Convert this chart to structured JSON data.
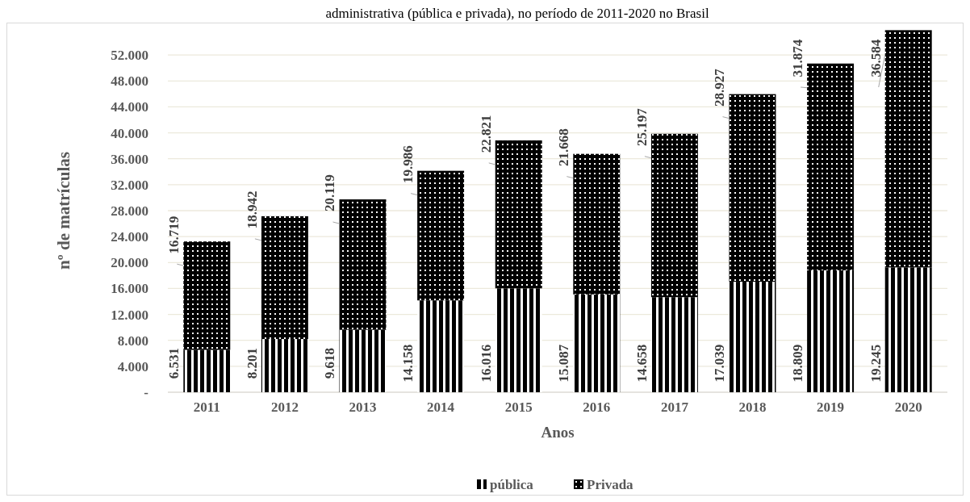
{
  "chart_data": {
    "type": "bar",
    "stacked": true,
    "title": "administrativa (pública e privada), no período de 2011-2020 no Brasil",
    "xlabel": "Anos",
    "ylabel": "nº de matrículas",
    "categories": [
      "2011",
      "2012",
      "2013",
      "2014",
      "2015",
      "2016",
      "2017",
      "2018",
      "2019",
      "2020"
    ],
    "series": [
      {
        "name": "pública",
        "color": "#000000",
        "values": [
          6531,
          8201,
          9618,
          14158,
          16016,
          15087,
          14658,
          17039,
          18809,
          19245
        ],
        "value_labels": [
          "6.531",
          "8.201",
          "9.618",
          "14.158",
          "16.016",
          "15.087",
          "14.658",
          "17.039",
          "18.809",
          "19.245"
        ]
      },
      {
        "name": "Privada",
        "color": "#000000",
        "values": [
          16719,
          18942,
          20119,
          19986,
          22821,
          21668,
          25197,
          28927,
          31874,
          36584
        ],
        "value_labels": [
          "16.719",
          "18.942",
          "20.119",
          "19.986",
          "22.821",
          "21.668",
          "25.197",
          "28.927",
          "31.874",
          "36.584"
        ]
      }
    ],
    "ylim": [
      0,
      56000
    ],
    "yticks": [
      {
        "value": 0,
        "label": "-"
      },
      {
        "value": 4000,
        "label": "4.000"
      },
      {
        "value": 8000,
        "label": "8.000"
      },
      {
        "value": 12000,
        "label": "12.000"
      },
      {
        "value": 16000,
        "label": "16.000"
      },
      {
        "value": 20000,
        "label": "20.000"
      },
      {
        "value": 24000,
        "label": "24.000"
      },
      {
        "value": 28000,
        "label": "28.000"
      },
      {
        "value": 32000,
        "label": "32.000"
      },
      {
        "value": 36000,
        "label": "36.000"
      },
      {
        "value": 40000,
        "label": "40.000"
      },
      {
        "value": 44000,
        "label": "44.000"
      },
      {
        "value": 48000,
        "label": "48.000"
      },
      {
        "value": 52000,
        "label": "52.000"
      }
    ],
    "grid": "y",
    "legend": "bottom"
  }
}
